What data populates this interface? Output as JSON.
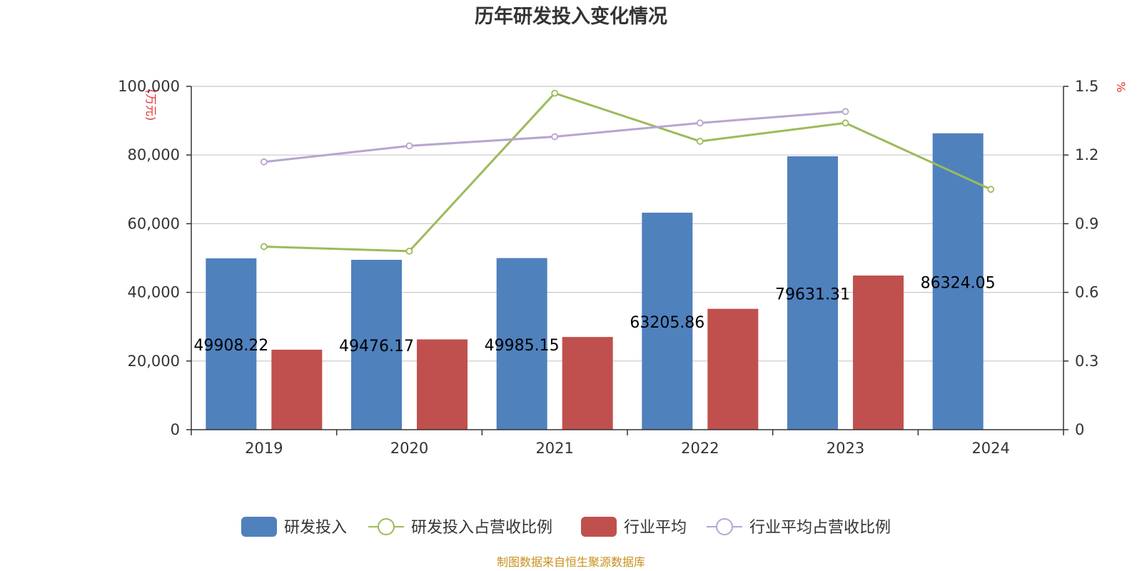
{
  "chart_data": {
    "type": "bar",
    "title": "历年研发投入变化情况",
    "categories": [
      "2019",
      "2020",
      "2021",
      "2022",
      "2023",
      "2024"
    ],
    "y_left": {
      "unit": "(万元)",
      "ylim": [
        0,
        100000
      ],
      "ticks": [
        0,
        20000,
        40000,
        60000,
        80000,
        100000
      ],
      "tick_labels": [
        "0",
        "20,000",
        "40,000",
        "60,000",
        "80,000",
        "100,000"
      ]
    },
    "y_right": {
      "unit": "%",
      "ylim": [
        0,
        1.5
      ],
      "ticks": [
        0,
        0.3,
        0.6,
        0.9,
        1.2,
        1.5
      ],
      "tick_labels": [
        "0",
        "0.3",
        "0.6",
        "0.9",
        "1.2",
        "1.5"
      ]
    },
    "grid": true,
    "legend_placement": "bottom-center",
    "series": [
      {
        "name": "研发投入",
        "kind": "bar",
        "axis": "left",
        "color": "#4f81bd",
        "values": [
          49908.22,
          49476.17,
          49985.15,
          63205.86,
          79631.31,
          86324.05
        ],
        "labels": [
          "49908.22",
          "49476.17",
          "49985.15",
          "63205.86",
          "79631.31",
          "86324.05"
        ]
      },
      {
        "name": "研发投入占营收比例",
        "kind": "line",
        "axis": "right",
        "color": "#9bbb59",
        "values": [
          0.8,
          0.78,
          1.47,
          1.26,
          1.34,
          1.05
        ]
      },
      {
        "name": "行业平均",
        "kind": "bar",
        "axis": "left",
        "color": "#c0504d",
        "values": [
          23300,
          26300,
          27000,
          35200,
          44900,
          null
        ]
      },
      {
        "name": "行业平均占营收比例",
        "kind": "line",
        "axis": "right",
        "color": "#b7a5d0",
        "values": [
          1.17,
          1.24,
          1.28,
          1.34,
          1.39,
          null
        ]
      }
    ],
    "source": "制图数据来自恒生聚源数据库"
  }
}
